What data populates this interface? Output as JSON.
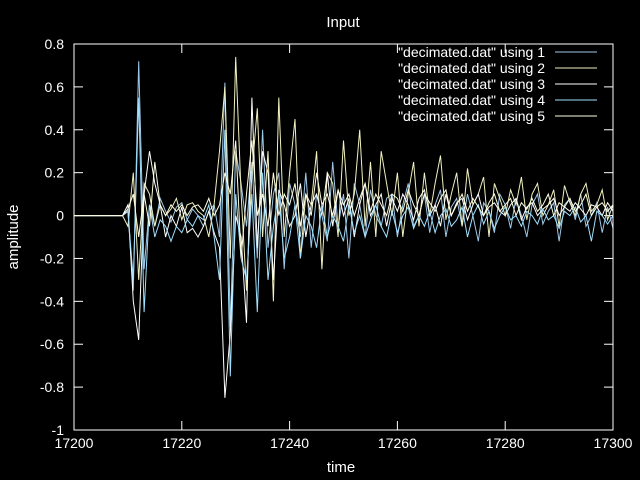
{
  "chart_data": {
    "type": "line",
    "title": "Input",
    "xlabel": "time",
    "ylabel": "amplitude",
    "xlim": [
      17200,
      17300
    ],
    "ylim": [
      -1,
      0.8
    ],
    "xticks": [
      17200,
      17220,
      17240,
      17260,
      17280,
      17300
    ],
    "yticks": [
      -1,
      -0.8,
      -0.6,
      -0.4,
      -0.2,
      0,
      0.2,
      0.4,
      0.6,
      0.8
    ],
    "ytick_labels": [
      "-1",
      "-0.8",
      "-0.6",
      "-0.4",
      "-0.2",
      "0",
      "0.2",
      "0.4",
      "0.6",
      "0.8"
    ],
    "grid": false,
    "legend_position": "top-right",
    "x_start": 17200,
    "x_step": 1,
    "series": [
      {
        "name": "\"decimated.dat\" using 1",
        "color": "#9ec8e8",
        "values": [
          0,
          0,
          0,
          0,
          0,
          0,
          0,
          0,
          0,
          0,
          0.02,
          -0.35,
          0.72,
          -0.25,
          0.05,
          -0.05,
          0.08,
          0.02,
          -0.03,
          0.04,
          0.06,
          -0.02,
          0.03,
          0.0,
          -0.05,
          0.02,
          0.05,
          -0.1,
          0.62,
          -0.52,
          0.3,
          0.15,
          -0.05,
          0.25,
          -0.2,
          0.4,
          -0.15,
          0.1,
          0.2,
          -0.25,
          0.15,
          0.05,
          -0.1,
          0.2,
          -0.15,
          0.1,
          0.0,
          -0.12,
          0.25,
          -0.05,
          0.1,
          -0.2,
          0.15,
          0.05,
          -0.1,
          0.12,
          0.0,
          -0.05,
          0.08,
          0.1,
          -0.1,
          0.05,
          0.15,
          -0.05,
          0.0,
          0.1,
          -0.08,
          0.05,
          0.12,
          -0.1,
          0.04,
          0.08,
          -0.05,
          0.1,
          0.0,
          -0.12,
          0.06,
          0.02,
          -0.08,
          0.1,
          0.05,
          -0.06,
          0.08,
          0.0,
          -0.1,
          0.05,
          0.1,
          -0.04,
          0.02,
          0.06,
          -0.12,
          0.05,
          0.08,
          -0.02,
          0.1,
          -0.05,
          0.0,
          0.06,
          -0.08,
          0.04,
          -0.06
        ]
      },
      {
        "name": "\"decimated.dat\" using 2",
        "color": "#f0f0c0",
        "values": [
          0,
          0,
          0,
          0,
          0,
          0,
          0,
          0,
          0,
          0,
          -0.05,
          0.2,
          -0.3,
          0.15,
          0.1,
          -0.05,
          0.05,
          0.0,
          0.03,
          0.08,
          -0.02,
          0.05,
          0.06,
          0.02,
          0.0,
          -0.1,
          0.05,
          0.3,
          0.6,
          -0.2,
          0.74,
          0.1,
          -0.35,
          0.2,
          0.5,
          -0.1,
          0.3,
          -0.4,
          0.55,
          -0.1,
          0.2,
          0.45,
          -0.2,
          0.1,
          0.05,
          0.3,
          -0.25,
          0.2,
          0.15,
          -0.1,
          0.35,
          0.0,
          0.1,
          0.4,
          -0.05,
          0.25,
          -0.1,
          0.3,
          0.15,
          0.0,
          0.2,
          -0.1,
          0.1,
          0.25,
          -0.05,
          0.2,
          0.0,
          0.15,
          0.28,
          -0.02,
          0.1,
          0.2,
          -0.05,
          0.22,
          0.05,
          0.1,
          0.18,
          -0.1,
          0.15,
          0.08,
          0.0,
          0.12,
          0.05,
          0.18,
          -0.02,
          0.1,
          0.15,
          0.0,
          0.05,
          0.12,
          -0.05,
          0.14,
          0.06,
          0.0,
          0.1,
          0.15,
          0.02,
          0.05,
          0.12,
          -0.02,
          0.05
        ]
      },
      {
        "name": "\"decimated.dat\" using 3",
        "color": "#ffffff",
        "values": [
          0,
          0,
          0,
          0,
          0,
          0,
          0,
          0,
          0,
          0,
          0.05,
          -0.4,
          -0.58,
          0.1,
          0.3,
          0.15,
          0.05,
          -0.1,
          0.0,
          -0.05,
          0.04,
          -0.08,
          -0.06,
          -0.1,
          -0.05,
          0.02,
          -0.08,
          -0.15,
          -0.85,
          -0.55,
          0.0,
          -0.1,
          -0.5,
          0.55,
          -0.15,
          0.3,
          0.2,
          -0.3,
          0.12,
          0.05,
          -0.05,
          0.0,
          0.15,
          -0.1,
          0.05,
          0.1,
          0.0,
          0.2,
          -0.05,
          0.12,
          0.0,
          0.08,
          -0.1,
          0.05,
          0.15,
          0.0,
          0.05,
          0.1,
          -0.05,
          0.08,
          0.02,
          0.1,
          0.05,
          -0.02,
          0.08,
          0.12,
          0.0,
          0.05,
          -0.05,
          0.1,
          0.0,
          0.06,
          0.08,
          -0.02,
          0.05,
          0.1,
          0.0,
          0.04,
          0.06,
          0.02,
          0.0,
          0.05,
          0.08,
          -0.02,
          0.04,
          0.06,
          0.0,
          0.03,
          0.05,
          0.08,
          0.0,
          0.04,
          0.02,
          0.06,
          0.03,
          0.0,
          0.05,
          0.04,
          0.0,
          0.06,
          0.02
        ]
      },
      {
        "name": "\"decimated.dat\" using 4",
        "color": "#a0e0ff",
        "values": [
          0,
          0,
          0,
          0,
          0,
          0,
          0,
          0,
          0,
          0,
          0.02,
          -0.3,
          0.55,
          -0.45,
          0.05,
          -0.1,
          -0.02,
          -0.05,
          -0.12,
          -0.05,
          -0.08,
          -0.02,
          -0.05,
          0.0,
          -0.02,
          0.05,
          -0.1,
          -0.3,
          0.4,
          -0.75,
          0.1,
          -0.2,
          -0.3,
          0.1,
          -0.45,
          0.2,
          -0.3,
          -0.05,
          0.1,
          -0.2,
          -0.1,
          0.05,
          -0.2,
          0.0,
          -0.05,
          -0.15,
          0.05,
          -0.1,
          0.0,
          -0.05,
          -0.12,
          0.05,
          -0.08,
          0.0,
          -0.1,
          -0.02,
          0.05,
          -0.05,
          -0.1,
          0.02,
          -0.08,
          0.0,
          0.04,
          -0.06,
          0.0,
          -0.05,
          0.02,
          -0.08,
          0.0,
          0.03,
          -0.05,
          -0.02,
          0.04,
          -0.1,
          0.0,
          0.05,
          -0.04,
          0.02,
          -0.06,
          0.0,
          0.04,
          -0.02,
          0.0,
          -0.05,
          0.02,
          0.0,
          -0.04,
          0.03,
          -0.02,
          0.0,
          -0.06,
          0.02,
          0.0,
          0.04,
          -0.03,
          0.0,
          -0.12,
          0.02,
          0.0,
          -0.04,
          0.0
        ]
      },
      {
        "name": "\"decimated.dat\" using 5",
        "color": "#ffffe0",
        "values": [
          0,
          0,
          0,
          0,
          0,
          0,
          0,
          0,
          0,
          0,
          0.03,
          0.1,
          -0.1,
          0.1,
          -0.05,
          0.25,
          0.05,
          0.0,
          0.05,
          0.02,
          0.05,
          0.0,
          0.04,
          0.05,
          0.02,
          0.08,
          0.0,
          0.05,
          0.2,
          0.1,
          0.35,
          -0.2,
          0.1,
          0.35,
          0.0,
          0.1,
          -0.05,
          0.2,
          0.0,
          0.1,
          0.05,
          0.15,
          -0.05,
          0.1,
          0.0,
          0.2,
          0.05,
          0.1,
          0.0,
          0.12,
          0.05,
          0.1,
          0.0,
          0.08,
          0.15,
          0.02,
          0.1,
          0.05,
          0.0,
          0.1,
          0.08,
          0.02,
          0.12,
          0.05,
          0.0,
          0.1,
          0.06,
          0.02,
          0.08,
          0.12,
          0.0,
          0.05,
          0.1,
          0.02,
          0.08,
          0.04,
          0.0,
          0.06,
          0.1,
          0.02,
          0.05,
          0.08,
          0.0,
          0.06,
          0.03,
          0.08,
          0.02,
          0.05,
          0.1,
          0.0,
          0.06,
          0.04,
          0.08,
          0.02,
          0.05,
          0.1,
          0.0,
          0.04,
          0.06,
          0.02,
          0.05
        ]
      }
    ]
  }
}
